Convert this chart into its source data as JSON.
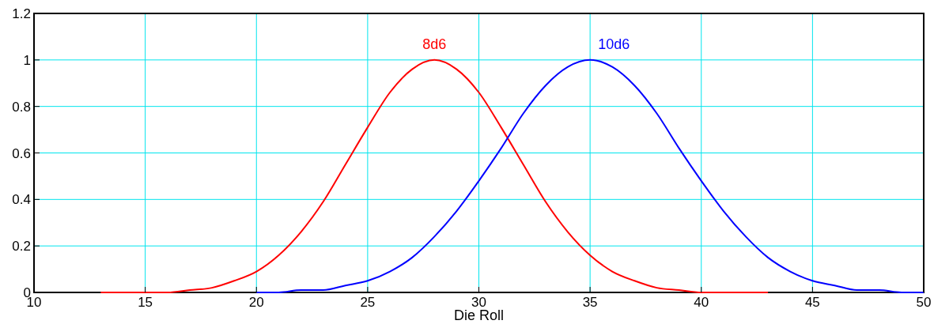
{
  "chart_data": {
    "type": "line",
    "xlabel": "Die Roll",
    "xlim": [
      10,
      50
    ],
    "ylim": [
      0,
      1.2
    ],
    "xticks": [
      10,
      15,
      20,
      25,
      30,
      35,
      40,
      45,
      50
    ],
    "yticks": [
      0,
      0.2,
      0.4,
      0.6,
      0.8,
      1,
      1.2
    ],
    "grid": true,
    "marker": "none",
    "line_style": "solid",
    "series": [
      {
        "name": "8d6",
        "color": "#ff0000",
        "x": [
          13,
          14,
          15,
          16,
          17,
          18,
          19,
          20,
          21,
          22,
          23,
          24,
          25,
          26,
          27,
          28,
          29,
          30,
          31,
          32,
          33,
          34,
          35,
          36,
          37,
          38,
          39,
          40,
          41,
          42,
          43
        ],
        "values": [
          0,
          0,
          0,
          0,
          0.01,
          0.02,
          0.05,
          0.09,
          0.16,
          0.26,
          0.39,
          0.55,
          0.71,
          0.86,
          0.96,
          1,
          0.96,
          0.86,
          0.71,
          0.55,
          0.39,
          0.26,
          0.16,
          0.09,
          0.05,
          0.02,
          0.01,
          0,
          0,
          0,
          0
        ]
      },
      {
        "name": "10d6",
        "color": "#0000ff",
        "x": [
          20,
          21,
          22,
          23,
          24,
          25,
          26,
          27,
          28,
          29,
          30,
          31,
          32,
          33,
          34,
          35,
          36,
          37,
          38,
          39,
          40,
          41,
          42,
          43,
          44,
          45,
          46,
          47,
          48,
          49,
          50
        ],
        "values": [
          0,
          0,
          0.01,
          0.01,
          0.03,
          0.05,
          0.09,
          0.15,
          0.24,
          0.35,
          0.48,
          0.62,
          0.77,
          0.89,
          0.97,
          1,
          0.97,
          0.89,
          0.77,
          0.62,
          0.48,
          0.35,
          0.24,
          0.15,
          0.09,
          0.05,
          0.03,
          0.01,
          0.01,
          0,
          0
        ]
      }
    ]
  }
}
